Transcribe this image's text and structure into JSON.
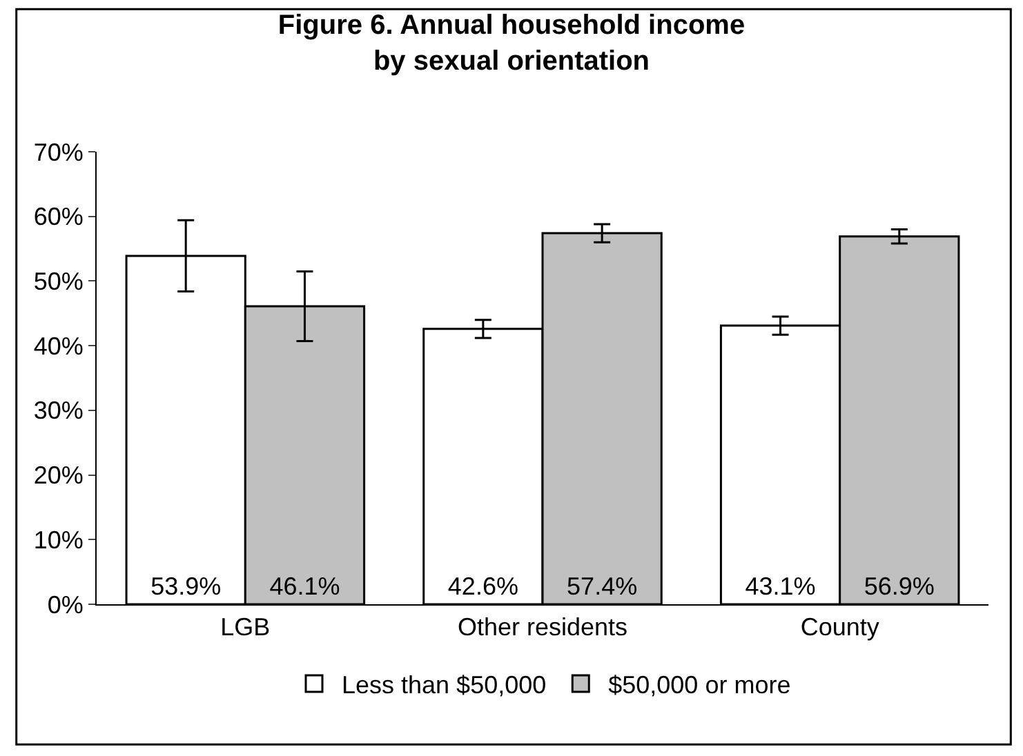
{
  "chart_data": {
    "type": "bar",
    "title": "Figure 6. Annual household income\nby sexual orientation",
    "categories": [
      "LGB",
      "Other residents",
      "County"
    ],
    "series": [
      {
        "name": "Less than $50,000",
        "color": "#ffffff",
        "values": [
          53.9,
          42.6,
          43.1
        ],
        "value_labels": [
          "53.9%",
          "42.6%",
          "43.1%"
        ],
        "errors": [
          5.5,
          1.4,
          1.4
        ]
      },
      {
        "name": "$50,000 or more",
        "color": "#c0c0c0",
        "values": [
          46.1,
          57.4,
          56.9
        ],
        "value_labels": [
          "46.1%",
          "57.4%",
          "56.9%"
        ],
        "errors": [
          5.4,
          1.4,
          1.1
        ]
      }
    ],
    "ylim": [
      0,
      70
    ],
    "yticks": [
      {
        "value": 0,
        "label": "0%"
      },
      {
        "value": 10,
        "label": "10%"
      },
      {
        "value": 20,
        "label": "20%"
      },
      {
        "value": 30,
        "label": "30%"
      },
      {
        "value": 40,
        "label": "40%"
      },
      {
        "value": 50,
        "label": "50%"
      },
      {
        "value": 60,
        "label": "60%"
      },
      {
        "value": 70,
        "label": "70%"
      }
    ],
    "legend": "bottom"
  }
}
